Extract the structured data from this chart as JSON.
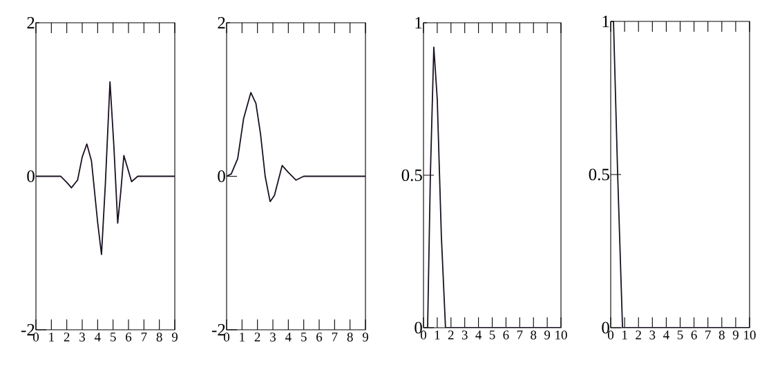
{
  "chart_data": [
    {
      "type": "line",
      "x": [
        0,
        1,
        1.6,
        2,
        2.3,
        2.7,
        3,
        3.3,
        3.6,
        4,
        4.25,
        4.5,
        4.8,
        5.05,
        5.3,
        5.5,
        5.7,
        5.95,
        6.2,
        6.6,
        7,
        8,
        9
      ],
      "values": [
        0,
        0,
        0,
        -0.08,
        -0.15,
        -0.05,
        0.25,
        0.42,
        0.2,
        -0.6,
        -1.02,
        -0.1,
        1.23,
        0.4,
        -0.61,
        -0.2,
        0.27,
        0.1,
        -0.07,
        0,
        0,
        0,
        0
      ],
      "color": "#1a1020",
      "xlim": [
        0,
        9
      ],
      "ylim": [
        -2,
        2
      ],
      "xticks": [
        0,
        1,
        2,
        3,
        4,
        5,
        6,
        7,
        8,
        9
      ],
      "yticks": [
        -2,
        0,
        2
      ],
      "line_style": "solid",
      "marker": "none"
    },
    {
      "type": "line",
      "x": [
        0,
        0.3,
        0.72,
        1.1,
        1.57,
        1.9,
        2.2,
        2.5,
        2.82,
        3.1,
        3.6,
        4.0,
        4.5,
        5,
        6,
        7,
        8,
        9
      ],
      "values": [
        0,
        0.03,
        0.23,
        0.75,
        1.09,
        0.95,
        0.55,
        0.0,
        -0.33,
        -0.25,
        0.14,
        0.05,
        -0.05,
        0,
        0,
        0,
        0,
        0
      ],
      "color": "#1a1020",
      "xlim": [
        0,
        9
      ],
      "ylim": [
        -2,
        2
      ],
      "xticks": [
        0,
        1,
        2,
        3,
        4,
        5,
        6,
        7,
        8,
        9
      ],
      "yticks": [
        -2,
        0,
        2
      ],
      "line_style": "solid",
      "marker": "none"
    },
    {
      "type": "line",
      "x": [
        0,
        0.3,
        0.5,
        0.75,
        1.0,
        1.3,
        1.6,
        2,
        10
      ],
      "values": [
        0,
        0,
        0.5,
        0.92,
        0.75,
        0.3,
        0,
        0,
        0
      ],
      "color": "#1a1020",
      "xlim": [
        0,
        10
      ],
      "ylim": [
        0,
        1
      ],
      "xticks": [
        0,
        1,
        2,
        3,
        4,
        5,
        6,
        7,
        8,
        9,
        10
      ],
      "yticks": [
        0,
        0.5,
        1
      ],
      "line_style": "solid",
      "marker": "none"
    },
    {
      "type": "line",
      "x": [
        0,
        0.2,
        0.5,
        0.85,
        10
      ],
      "values": [
        1,
        1,
        0.5,
        0,
        0
      ],
      "color": "#1a1020",
      "xlim": [
        0,
        10
      ],
      "ylim": [
        0,
        1
      ],
      "xticks": [
        0,
        1,
        2,
        3,
        4,
        5,
        6,
        7,
        8,
        9,
        10
      ],
      "yticks": [
        0,
        0.5,
        1
      ],
      "line_style": "solid",
      "marker": "none"
    }
  ]
}
